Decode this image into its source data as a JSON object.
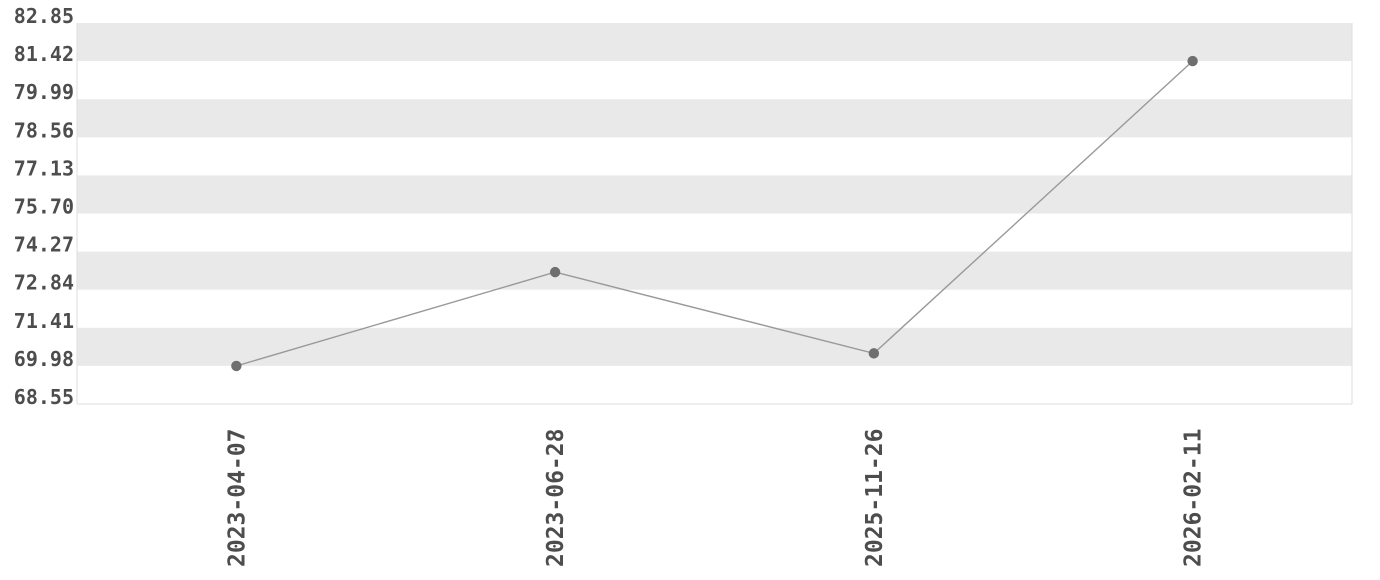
{
  "chart_data": {
    "type": "line",
    "title": "",
    "xlabel": "",
    "ylabel": "",
    "x": [
      "2023-04-07",
      "2023-06-28",
      "2025-11-26",
      "2026-02-11"
    ],
    "values": [
      69.98,
      73.5,
      70.45,
      81.42
    ],
    "y_ticks": [
      "82.85",
      "81.42",
      "79.99",
      "78.56",
      "77.13",
      "75.70",
      "74.27",
      "72.84",
      "71.41",
      "69.98",
      "68.55"
    ],
    "ylim": [
      68.55,
      82.85
    ],
    "grid": "alternating-horizontal-bands",
    "legend": "none",
    "x_tick_rotation_degrees": 90,
    "colors": {
      "background": "#ffffff",
      "band": "#e9e9e9",
      "line": "#999999",
      "marker": "#6f6f6f",
      "tick_text": "#4d4d4d",
      "plot_border": "#dedede"
    }
  }
}
